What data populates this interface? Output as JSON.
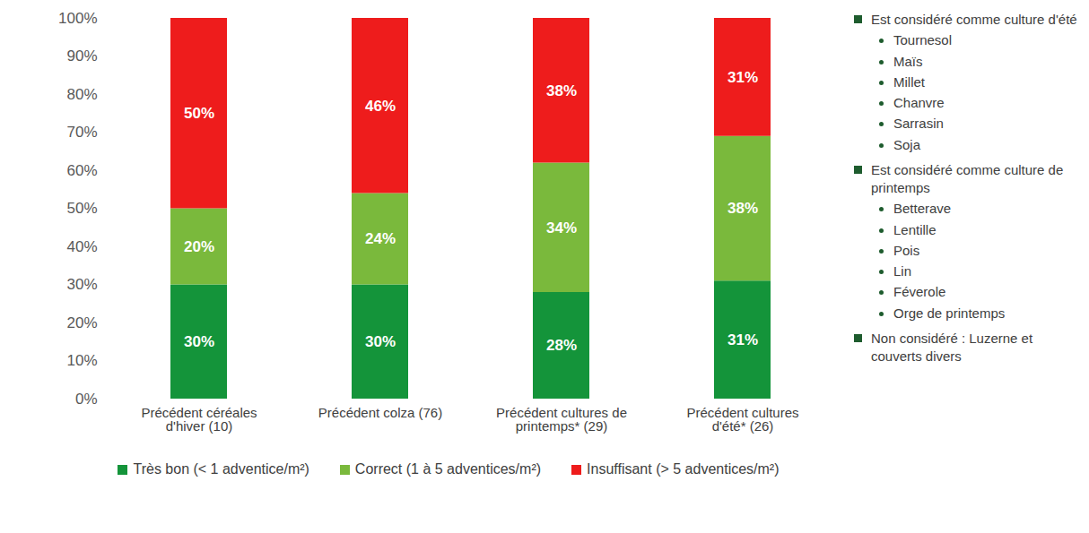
{
  "chart_data": {
    "type": "bar",
    "stacked": true,
    "data_labels": true,
    "grid": false,
    "legend": "bottom",
    "categories": [
      "Précédent céréales d'hiver (10)",
      "Précédent colza (76)",
      "Précédent cultures de printemps* (29)",
      "Précédent cultures d'été* (26)"
    ],
    "series": [
      {
        "name": "Très bon (< 1 adventice/m²)",
        "color": "#14943a",
        "values": [
          30,
          30,
          28,
          31
        ],
        "value_labels": [
          "30%",
          "30%",
          "28%",
          "31%"
        ]
      },
      {
        "name": "Correct (1 à 5 adventices/m²)",
        "color": "#7ab93c",
        "values": [
          20,
          24,
          34,
          38
        ],
        "value_labels": [
          "20%",
          "24%",
          "34%",
          "38%"
        ]
      },
      {
        "name": "Insuffisant (> 5 adventices/m²)",
        "color": "#ee1c1c",
        "values": [
          50,
          46,
          38,
          31
        ],
        "value_labels": [
          "50%",
          "46%",
          "38%",
          "31%"
        ]
      }
    ],
    "ylim": [
      0,
      100
    ],
    "yticks": [
      {
        "value": 0,
        "label": "0%"
      },
      {
        "value": 10,
        "label": "10%"
      },
      {
        "value": 20,
        "label": "20%"
      },
      {
        "value": 30,
        "label": "30%"
      },
      {
        "value": 40,
        "label": "40%"
      },
      {
        "value": 50,
        "label": "50%"
      },
      {
        "value": 60,
        "label": "60%"
      },
      {
        "value": 70,
        "label": "70%"
      },
      {
        "value": 80,
        "label": "80%"
      },
      {
        "value": 90,
        "label": "90%"
      },
      {
        "value": 100,
        "label": "100%"
      }
    ],
    "annotations": [
      {
        "text": "Est considéré comme culture d'été",
        "items": [
          "Tournesol",
          "Maïs",
          "Millet",
          "Chanvre",
          "Sarrasin",
          "Soja"
        ]
      },
      {
        "text": "Est considéré comme culture de printemps",
        "items": [
          "Betterave",
          "Lentille",
          "Pois",
          "Lin",
          "Féverole",
          "Orge de printemps"
        ]
      },
      {
        "text": "Non considéré : Luzerne et couverts divers"
      }
    ]
  }
}
